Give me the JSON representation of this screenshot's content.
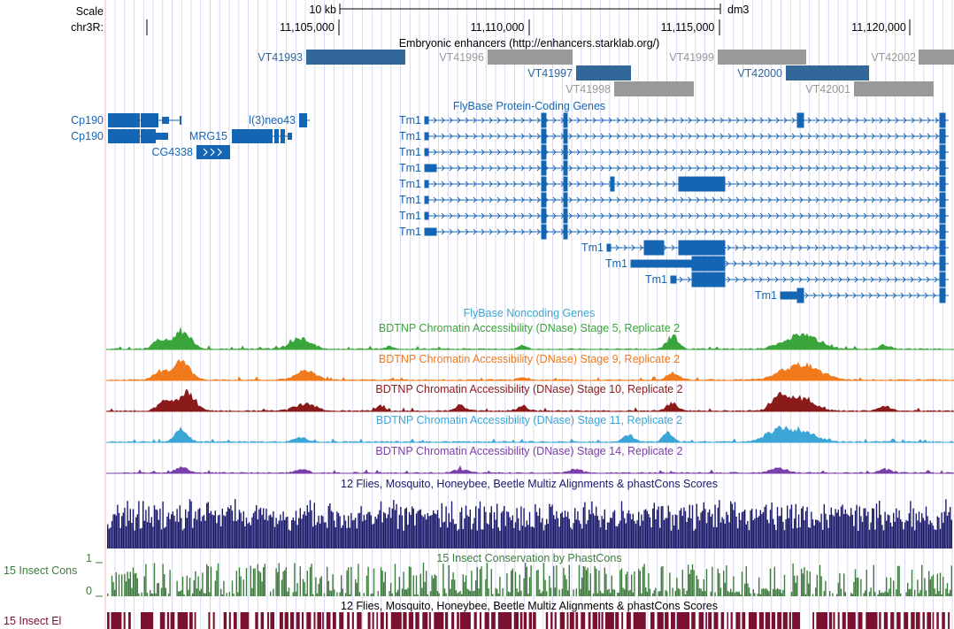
{
  "ruler": {
    "scale_label": "Scale",
    "scale_bar_label": "10 kb",
    "assembly": "dm3",
    "chrom_label": "chr3R:",
    "positions": [
      "11,105,000",
      "11,110,000",
      "11,115,000",
      "11,120,000"
    ]
  },
  "enhancer_track": {
    "title": "Embryonic enhancers (http://enhancers.starklab.org/)",
    "items": [
      {
        "name": "VT41993",
        "selected": true
      },
      {
        "name": "VT41996",
        "selected": false
      },
      {
        "name": "VT41997",
        "selected": true
      },
      {
        "name": "VT41998",
        "selected": false
      },
      {
        "name": "VT41999",
        "selected": false
      },
      {
        "name": "VT42000",
        "selected": true
      },
      {
        "name": "VT42001",
        "selected": false
      },
      {
        "name": "VT42002",
        "selected": false
      }
    ]
  },
  "gene_track": {
    "title": "FlyBase Protein-Coding Genes",
    "genes": [
      "Cp190",
      "Cp190",
      "l(3)neo43",
      "MRG15",
      "CG4338",
      "Tm1",
      "Tm1",
      "Tm1",
      "Tm1",
      "Tm1",
      "Tm1",
      "Tm1",
      "Tm1",
      "Tm1",
      "Tm1",
      "Tm1",
      "Tm1"
    ]
  },
  "noncoding_track": {
    "title": "FlyBase Noncoding Genes"
  },
  "dnase_tracks": [
    {
      "title": "BDTNP Chromatin Accessibility (DNase) Stage 5, Replicate 2",
      "color": "#3aa53a"
    },
    {
      "title": "BDTNP Chromatin Accessibility (DNase) Stage 9, Replicate 2",
      "color": "#f07a1c"
    },
    {
      "title": "BDTNP Chromatin Accessibility (DNase) Stage 10, Replicate 2",
      "color": "#8b1a1a"
    },
    {
      "title": "BDTNP Chromatin Accessibility (DNase) Stage 11, Replicate 2",
      "color": "#3ba6d6"
    },
    {
      "title": "BDTNP Chromatin Accessibility (DNase) Stage 14, Replicate 2",
      "color": "#7a3fa8"
    }
  ],
  "multiz_track": {
    "title": "12 Flies, Mosquito, Honeybee, Beetle Multiz Alignments & phastCons Scores"
  },
  "cons_track": {
    "title": "15 Insect Conservation by PhastCons",
    "label": "15 Insect Cons",
    "ymax": "1",
    "ymin": "0"
  },
  "element_track": {
    "title": "12 Flies, Mosquito, Honeybee, Beetle Multiz Alignments & phastCons Scores",
    "label": "15 Insect El"
  },
  "colors": {
    "gene": "#1565b5",
    "enhancer_selected": "#336699",
    "enhancer_other": "#999999",
    "multiz": "#1a1a6e",
    "cons": "#3d7d3d",
    "elements": "#7a1030",
    "grid": "#c8c8f0"
  }
}
